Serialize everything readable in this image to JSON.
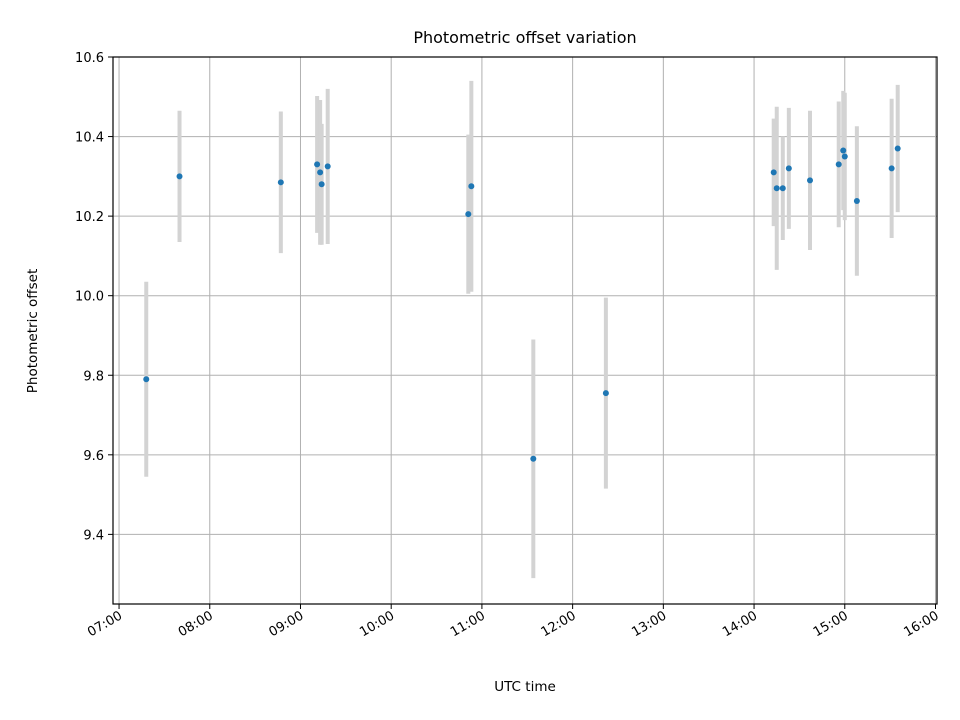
{
  "chart_data": {
    "type": "scatter",
    "title": "Photometric offset variation",
    "xlabel": "UTC time",
    "ylabel": "Photometric offset",
    "xlim": [
      "06:56",
      "16:01"
    ],
    "ylim": [
      9.225,
      10.6
    ],
    "grid": true,
    "xticks": [
      "07:00",
      "08:00",
      "09:00",
      "10:00",
      "11:00",
      "12:00",
      "13:00",
      "14:00",
      "15:00",
      "16:00"
    ],
    "yticks": [
      "9.4",
      "9.6",
      "9.8",
      "10.0",
      "10.2",
      "10.4",
      "10.6"
    ],
    "colors": {
      "point": "#1f77b4",
      "errorbar": "#d3d3d3",
      "grid": "#b0b0b0"
    },
    "points": [
      {
        "t": "07:18",
        "y": 9.79,
        "err": 0.245
      },
      {
        "t": "07:40",
        "y": 10.3,
        "err": 0.165
      },
      {
        "t": "08:47",
        "y": 10.285,
        "err": 0.178
      },
      {
        "t": "09:11",
        "y": 10.33,
        "err": 0.172
      },
      {
        "t": "09:13",
        "y": 10.31,
        "err": 0.182
      },
      {
        "t": "09:14",
        "y": 10.28,
        "err": 0.152
      },
      {
        "t": "09:18",
        "y": 10.325,
        "err": 0.195
      },
      {
        "t": "10:51",
        "y": 10.205,
        "err": 0.2
      },
      {
        "t": "10:53",
        "y": 10.275,
        "err": 0.265
      },
      {
        "t": "11:34",
        "y": 9.59,
        "err": 0.3
      },
      {
        "t": "12:22",
        "y": 9.755,
        "err": 0.24
      },
      {
        "t": "14:13",
        "y": 10.31,
        "err": 0.135
      },
      {
        "t": "14:15",
        "y": 10.27,
        "err": 0.205
      },
      {
        "t": "14:19",
        "y": 10.27,
        "err": 0.13
      },
      {
        "t": "14:23",
        "y": 10.32,
        "err": 0.152
      },
      {
        "t": "14:37",
        "y": 10.29,
        "err": 0.175
      },
      {
        "t": "14:56",
        "y": 10.33,
        "err": 0.158
      },
      {
        "t": "14:59",
        "y": 10.365,
        "err": 0.15
      },
      {
        "t": "15:00",
        "y": 10.35,
        "err": 0.16
      },
      {
        "t": "15:08",
        "y": 10.238,
        "err": 0.188
      },
      {
        "t": "15:31",
        "y": 10.32,
        "err": 0.175
      },
      {
        "t": "15:35",
        "y": 10.37,
        "err": 0.16
      }
    ]
  }
}
